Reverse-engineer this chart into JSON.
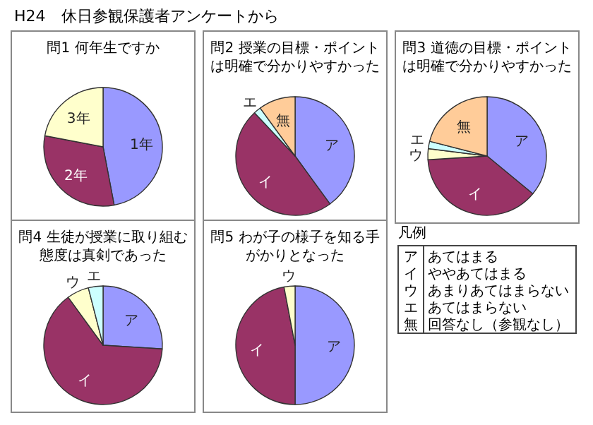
{
  "chart_data": [
    {
      "type": "other",
      "title": "H24　休日参観保護者アンケートから"
    },
    {
      "type": "pie",
      "title": "問1 何年生ですか",
      "categories": [
        "1年",
        "2年",
        "3年"
      ],
      "values": [
        47,
        31,
        22
      ],
      "colors": [
        "#9999ff",
        "#993366",
        "#ffffcc"
      ]
    },
    {
      "type": "pie",
      "title": "問2 授業の目標・ポイントは明確で分かりやすかった",
      "categories": [
        "ア",
        "イ",
        "エ",
        "無"
      ],
      "values": [
        40,
        48,
        2,
        10
      ],
      "colors": [
        "#9999ff",
        "#993366",
        "#ccffff",
        "#ffcc99"
      ]
    },
    {
      "type": "pie",
      "title": "問3 道徳の目標・ポイントは明確で分かりやすかった",
      "categories": [
        "ア",
        "イ",
        "ウ",
        "エ",
        "無"
      ],
      "values": [
        36,
        38,
        3,
        2,
        21
      ],
      "colors": [
        "#9999ff",
        "#993366",
        "#ffffcc",
        "#ccffff",
        "#ffcc99"
      ]
    },
    {
      "type": "pie",
      "title": "問4 生徒が授業に取り組む態度は真剣であった",
      "categories": [
        "ア",
        "イ",
        "ウ",
        "エ"
      ],
      "values": [
        26,
        64,
        6,
        4
      ],
      "colors": [
        "#9999ff",
        "#993366",
        "#ffffcc",
        "#ccffff"
      ]
    },
    {
      "type": "pie",
      "title": "問5 わが子の様子を知る手がかりとなった",
      "categories": [
        "ア",
        "イ",
        "ウ"
      ],
      "values": [
        50,
        47,
        3
      ],
      "colors": [
        "#9999ff",
        "#993366",
        "#ffffcc"
      ]
    },
    {
      "type": "other",
      "title": "凡例",
      "annotations": [
        "ア",
        "あてはまる",
        "イ",
        "ややあてはまる",
        "ウ",
        "あまりあてはまらない",
        "エ",
        "あてはまらない",
        "無",
        "回答なし（参観なし）"
      ]
    }
  ]
}
